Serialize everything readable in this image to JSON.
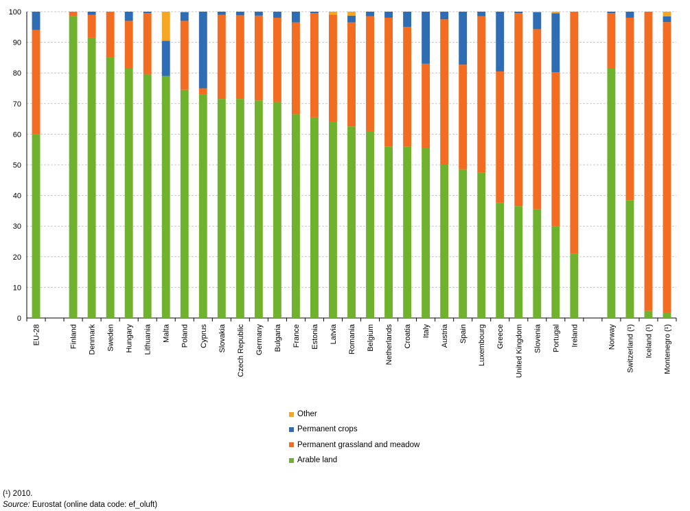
{
  "chart_data": {
    "type": "bar",
    "stacked": true,
    "ylim": [
      0,
      100
    ],
    "yticks": [
      0,
      10,
      20,
      30,
      40,
      50,
      60,
      70,
      80,
      90,
      100
    ],
    "grid": true,
    "legend_position": "bottom-center",
    "categories": [
      "EU-28",
      "",
      "Finland",
      "Denmark",
      "Sweden",
      "Hungary",
      "Lithuania",
      "Malta",
      "Poland",
      "Cyprus",
      "Slovakia",
      "Czech Republic",
      "Germany",
      "Bulgaria",
      "France",
      "Estonia",
      "Latvia",
      "Romania",
      "Belgium",
      "Netherlands",
      "Croatia",
      "Italy",
      "Austria",
      "Spain",
      "Luxembourg",
      "Greece",
      "United Kingdom",
      "Slovenia",
      "Portugal",
      "Ireland",
      "",
      "Norway",
      "Switzerland (¹)",
      "Iceland (¹)",
      "Montenegro (¹)"
    ],
    "series": [
      {
        "name": "Arable land",
        "color": "#70b22e",
        "values": [
          60,
          null,
          98.5,
          91.5,
          85,
          81.5,
          79.5,
          79,
          74.5,
          73,
          71.5,
          71.5,
          71,
          70.5,
          66.5,
          65.5,
          64,
          62.5,
          61,
          56,
          56,
          55.5,
          50,
          48.5,
          47.5,
          37.5,
          36.5,
          35.5,
          30,
          21,
          null,
          81.5,
          38.5,
          2.3,
          1.8
        ]
      },
      {
        "name": "Permanent grassland and meadow",
        "color": "#f26c21",
        "values": [
          34,
          null,
          1.5,
          7.5,
          15,
          15.5,
          20,
          0,
          22.5,
          2,
          27.5,
          27.3,
          27.7,
          27.5,
          30,
          34,
          35,
          34,
          37.5,
          42,
          39,
          27.5,
          47.5,
          34.2,
          51,
          43,
          63,
          58.8,
          50.2,
          79,
          null,
          18,
          59.5,
          97.7,
          94.8
        ]
      },
      {
        "name": "Permanent crops",
        "color": "#2e6db4",
        "values": [
          6,
          null,
          0,
          1,
          0,
          3,
          0.5,
          11.5,
          2.8,
          25,
          1,
          1.2,
          1.3,
          2,
          3.5,
          0.5,
          0,
          2.2,
          1.5,
          2,
          5,
          17,
          2.5,
          17.3,
          1.5,
          19.5,
          0.5,
          5.5,
          19.3,
          0,
          null,
          0.5,
          2,
          0,
          1.9
        ]
      },
      {
        "name": "Other",
        "color": "#f5a623",
        "values": [
          0,
          null,
          0,
          0,
          0,
          0,
          0,
          9.5,
          0.2,
          0,
          0,
          0,
          0,
          0,
          0,
          0,
          1,
          1.3,
          0,
          0,
          0,
          0,
          0,
          0,
          0,
          0,
          0,
          0.2,
          0.5,
          0,
          null,
          0,
          0,
          0,
          1.5
        ]
      }
    ]
  },
  "legend": {
    "items": [
      {
        "label": "Other",
        "color": "#f5a623"
      },
      {
        "label": "Permanent crops",
        "color": "#2e6db4"
      },
      {
        "label": "Permanent grassland and meadow",
        "color": "#f26c21"
      },
      {
        "label": "Arable land",
        "color": "#70b22e"
      }
    ]
  },
  "footnotes": {
    "note": "(¹) 2010.",
    "source_label": "Source:",
    "source_text": " Eurostat (online data code: ef_oluft)"
  }
}
